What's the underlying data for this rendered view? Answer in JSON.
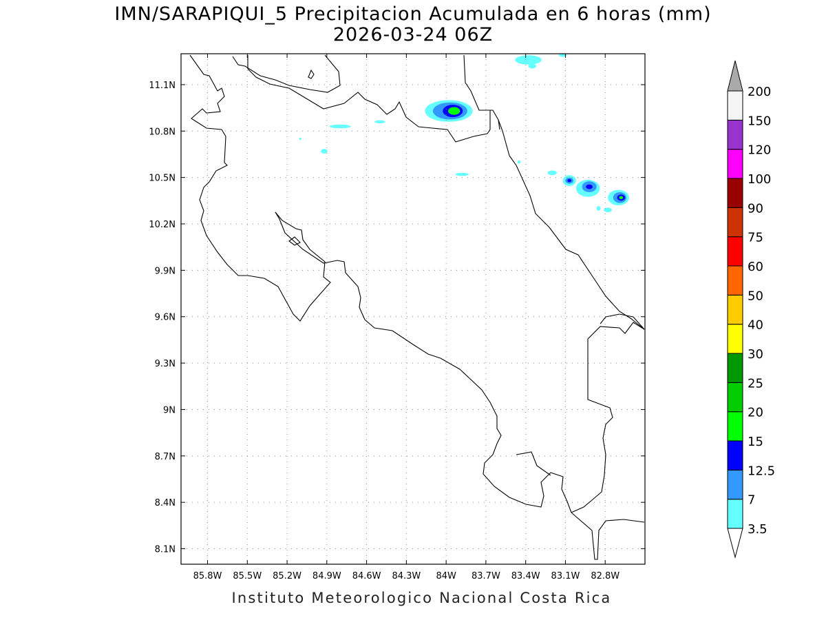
{
  "title_line1": "IMN/SARAPIQUI_5 Precipitacion Acumulada en 6 horas (mm)",
  "title_line2": "2026-03-24 06Z",
  "footer": "Instituto Meteorologico Nacional Costa Rica",
  "map": {
    "lon_range": [
      -86.0,
      -82.5
    ],
    "lat_range": [
      8.0,
      11.3
    ],
    "lat_ticks": [
      {
        "value": 11.1,
        "label": "11.1N"
      },
      {
        "value": 10.8,
        "label": "10.8N"
      },
      {
        "value": 10.5,
        "label": "10.5N"
      },
      {
        "value": 10.2,
        "label": "10.2N"
      },
      {
        "value": 9.9,
        "label": "9.9N"
      },
      {
        "value": 9.6,
        "label": "9.6N"
      },
      {
        "value": 9.3,
        "label": "9.3N"
      },
      {
        "value": 9.0,
        "label": "9N"
      },
      {
        "value": 8.7,
        "label": "8.7N"
      },
      {
        "value": 8.4,
        "label": "8.4N"
      },
      {
        "value": 8.1,
        "label": "8.1N"
      }
    ],
    "lon_ticks": [
      {
        "value": -85.8,
        "label": "85.8W"
      },
      {
        "value": -85.5,
        "label": "85.5W"
      },
      {
        "value": -85.2,
        "label": "85.2W"
      },
      {
        "value": -84.9,
        "label": "84.9W"
      },
      {
        "value": -84.6,
        "label": "84.6W"
      },
      {
        "value": -84.3,
        "label": "84.3W"
      },
      {
        "value": -84.0,
        "label": "84W"
      },
      {
        "value": -83.7,
        "label": "83.7W"
      },
      {
        "value": -83.4,
        "label": "83.4W"
      },
      {
        "value": -83.1,
        "label": "83.1W"
      },
      {
        "value": -82.8,
        "label": "82.8W"
      }
    ],
    "grid": true
  },
  "colorbar": {
    "levels": [
      "3.5",
      "7",
      "12.5",
      "15",
      "20",
      "25",
      "30",
      "40",
      "50",
      "60",
      "75",
      "90",
      "100",
      "120",
      "150",
      "200"
    ],
    "colors": [
      "#66ffff",
      "#3399ff",
      "#0000ff",
      "#00ff00",
      "#00cc00",
      "#009900",
      "#ffff00",
      "#ffcc00",
      "#ff6600",
      "#ff0000",
      "#cc3300",
      "#990000",
      "#ff00ff",
      "#9933cc",
      "#f5f5f5",
      "#aaaaaa"
    ],
    "top_triangle_color": "#aaaaaa",
    "bottom_triangle_color": "#ffffff"
  },
  "precip_areas": [
    {
      "lon": -83.98,
      "lat": 10.93,
      "rx": 0.18,
      "ry": 0.07,
      "level": 0
    },
    {
      "lon": -83.97,
      "lat": 10.93,
      "rx": 0.13,
      "ry": 0.055,
      "level": 1
    },
    {
      "lon": -83.95,
      "lat": 10.93,
      "rx": 0.075,
      "ry": 0.04,
      "level": 2
    },
    {
      "lon": -83.94,
      "lat": 10.93,
      "rx": 0.045,
      "ry": 0.025,
      "level": 3
    },
    {
      "lon": -84.8,
      "lat": 10.83,
      "rx": 0.08,
      "ry": 0.012,
      "level": 0
    },
    {
      "lon": -84.5,
      "lat": 10.86,
      "rx": 0.04,
      "ry": 0.01,
      "level": 0
    },
    {
      "lon": -84.92,
      "lat": 10.67,
      "rx": 0.025,
      "ry": 0.015,
      "level": 0
    },
    {
      "lon": -83.88,
      "lat": 10.52,
      "rx": 0.05,
      "ry": 0.01,
      "level": 0
    },
    {
      "lon": -83.38,
      "lat": 11.26,
      "rx": 0.1,
      "ry": 0.03,
      "level": 0
    },
    {
      "lon": -83.35,
      "lat": 11.22,
      "rx": 0.03,
      "ry": 0.015,
      "level": 0
    },
    {
      "lon": -83.12,
      "lat": 11.29,
      "rx": 0.03,
      "ry": 0.01,
      "level": 0
    },
    {
      "lon": -83.07,
      "lat": 10.48,
      "rx": 0.05,
      "ry": 0.035,
      "level": 0
    },
    {
      "lon": -83.07,
      "lat": 10.48,
      "rx": 0.03,
      "ry": 0.02,
      "level": 1
    },
    {
      "lon": -83.07,
      "lat": 10.48,
      "rx": 0.015,
      "ry": 0.01,
      "level": 2
    },
    {
      "lon": -82.93,
      "lat": 10.43,
      "rx": 0.09,
      "ry": 0.055,
      "level": 0
    },
    {
      "lon": -82.92,
      "lat": 10.44,
      "rx": 0.055,
      "ry": 0.035,
      "level": 1
    },
    {
      "lon": -82.92,
      "lat": 10.44,
      "rx": 0.025,
      "ry": 0.015,
      "level": 2
    },
    {
      "lon": -82.7,
      "lat": 10.37,
      "rx": 0.08,
      "ry": 0.05,
      "level": 0
    },
    {
      "lon": -82.69,
      "lat": 10.37,
      "rx": 0.05,
      "ry": 0.035,
      "level": 1
    },
    {
      "lon": -82.68,
      "lat": 10.37,
      "rx": 0.03,
      "ry": 0.02,
      "level": 2
    },
    {
      "lon": -82.68,
      "lat": 10.37,
      "rx": 0.015,
      "ry": 0.01,
      "level": 3
    },
    {
      "lon": -83.2,
      "lat": 10.53,
      "rx": 0.035,
      "ry": 0.015,
      "level": 0
    },
    {
      "lon": -82.78,
      "lat": 10.29,
      "rx": 0.03,
      "ry": 0.015,
      "level": 0
    },
    {
      "lon": -82.85,
      "lat": 10.3,
      "rx": 0.015,
      "ry": 0.015,
      "level": 0
    },
    {
      "lon": -83.45,
      "lat": 10.6,
      "rx": 0.012,
      "ry": 0.01,
      "level": 0
    },
    {
      "lon": -85.1,
      "lat": 10.75,
      "rx": 0.008,
      "ry": 0.008,
      "level": 0
    }
  ]
}
